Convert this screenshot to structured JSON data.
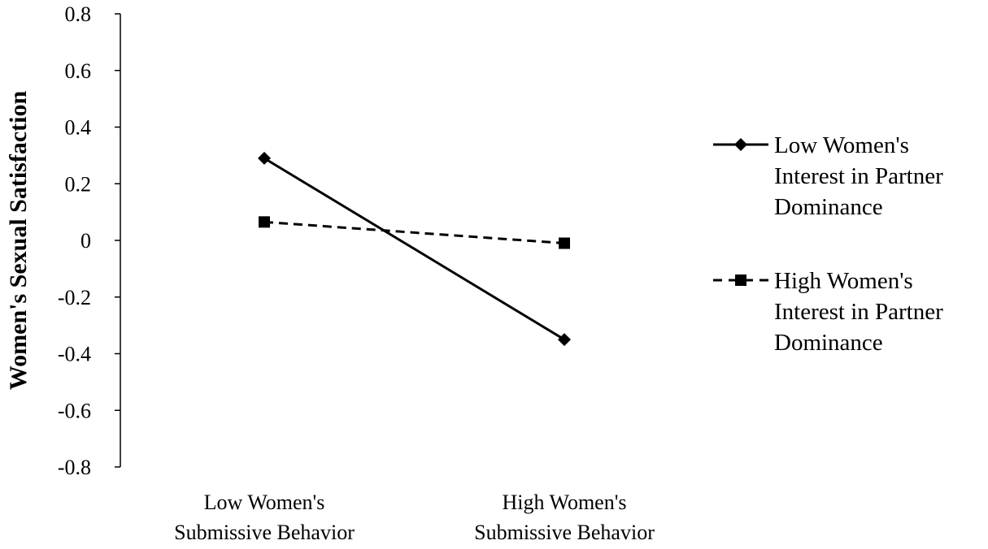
{
  "chart_data": {
    "type": "line",
    "title": "",
    "ylabel": "Women's Sexual Satisfaction",
    "xlabel": "",
    "ylim": [
      -0.8,
      0.8
    ],
    "yticks": [
      "0.8",
      "0.6",
      "0.4",
      "0.2",
      "0",
      "-0.2",
      "-0.4",
      "-0.6",
      "-0.8"
    ],
    "ytick_values": [
      0.8,
      0.6,
      0.4,
      0.2,
      0,
      -0.2,
      -0.4,
      -0.6,
      -0.8
    ],
    "categories": [
      [
        "Low Women's",
        "Submissive Behavior"
      ],
      [
        "High Women's",
        "Submissive Behavior"
      ]
    ],
    "grid": false,
    "legend_position": "right",
    "series": [
      {
        "name": [
          "Low Women's",
          "Interest in Partner",
          "Dominance"
        ],
        "values": [
          0.29,
          -0.35
        ],
        "line_style": "solid",
        "marker": "diamond",
        "color": "#000000"
      },
      {
        "name": [
          "High Women's",
          "Interest in Partner",
          "Dominance"
        ],
        "values": [
          0.065,
          -0.01
        ],
        "line_style": "dashed",
        "marker": "square",
        "color": "#000000"
      }
    ]
  }
}
